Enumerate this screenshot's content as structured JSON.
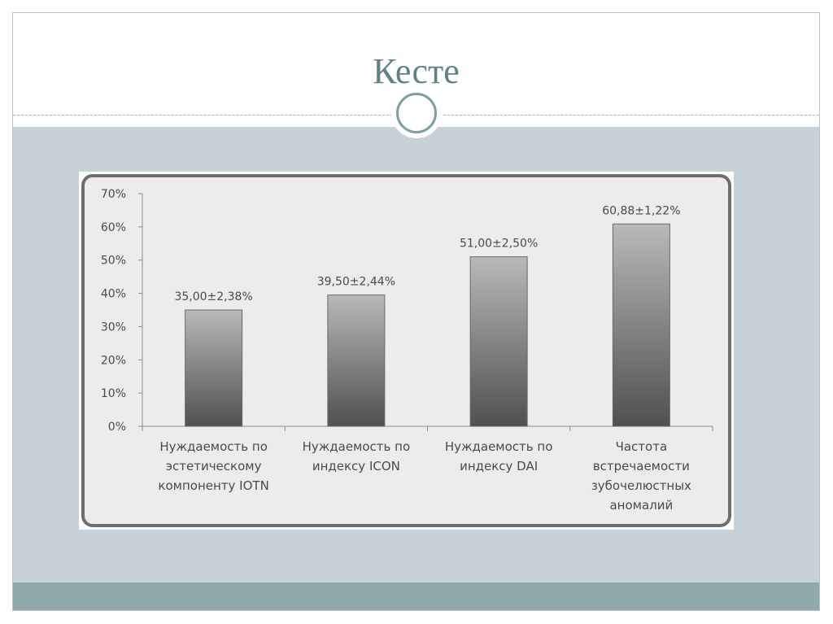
{
  "slide": {
    "title": "Кесте"
  },
  "colors": {
    "title": "#5e8386",
    "body_band": "#c6d2d8",
    "footer_band": "#8fa9a9",
    "bar_dark": "#505050",
    "bar_light": "#b9b9b9",
    "chart_border": "#6e6e6e"
  },
  "chart_data": {
    "type": "bar",
    "categories": [
      "Нуждаемость по эстетическому компоненту IOTN",
      "Нуждаемость по индексу ICON",
      "Нуждаемость по индексу DAI",
      "Частота встречаемости зубочелюстных аномалий"
    ],
    "category_lines": [
      [
        "Нуждаемость по",
        "эстетическому",
        "компоненту IOTN"
      ],
      [
        "Нуждаемость по",
        "индексу ICON"
      ],
      [
        "Нуждаемость по",
        "индексу DAI"
      ],
      [
        "Частота",
        "встречаемости",
        "зубочелюстных",
        "аномалий"
      ]
    ],
    "values": [
      35.0,
      39.5,
      51.0,
      60.88
    ],
    "data_labels": [
      "35,00±2,38%",
      "39,50±2,44%",
      "51,00±2,50%",
      "60,88±1,22%"
    ],
    "yticks": [
      "0%",
      "10%",
      "20%",
      "30%",
      "40%",
      "50%",
      "60%",
      "70%"
    ],
    "ylim": [
      0,
      70
    ],
    "grid": false,
    "legend": "none"
  }
}
